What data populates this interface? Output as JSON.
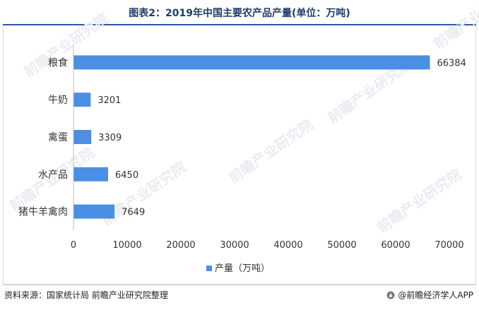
{
  "title": "图表2：2019年中国主要农产品产量(单位：万吨)",
  "source": "资料来源：国家统计局 前瞻产业研究院整理",
  "brand": "@前瞻经济学人APP",
  "watermark": "前瞻产业研究院",
  "colors": {
    "bar": "#4a8fe3",
    "axis": "#bfbfbf",
    "title": "#1f3c6b"
  },
  "chart_data": {
    "type": "bar",
    "orientation": "horizontal",
    "categories": [
      "粮食",
      "牛奶",
      "禽蛋",
      "水产品",
      "猪牛羊禽肉"
    ],
    "series": [
      {
        "name": "产量（万吨）",
        "values": [
          66384,
          3201,
          3309,
          6450,
          7649
        ]
      }
    ],
    "xlim": [
      0,
      70000
    ],
    "xticks": [
      0,
      10000,
      20000,
      30000,
      40000,
      50000,
      60000,
      70000
    ],
    "grid": false,
    "legend": "bottom-center"
  }
}
